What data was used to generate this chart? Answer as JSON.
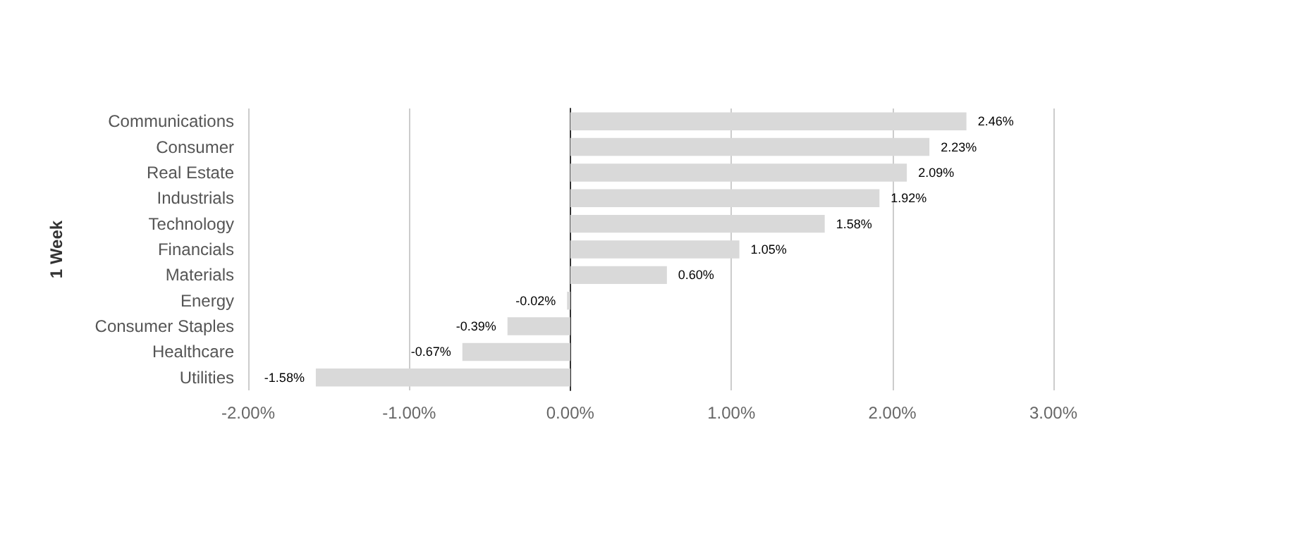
{
  "chart_data": {
    "type": "bar",
    "orientation": "horizontal",
    "ylabel": "1 Week",
    "categories": [
      "Communications",
      "Consumer",
      "Real Estate",
      "Industrials",
      "Technology",
      "Financials",
      "Materials",
      "Energy",
      "Consumer Staples",
      "Healthcare",
      "Utilities"
    ],
    "values": [
      2.46,
      2.23,
      2.09,
      1.92,
      1.58,
      1.05,
      0.6,
      -0.02,
      -0.39,
      -0.67,
      -1.58
    ],
    "value_labels": [
      "2.46%",
      "2.23%",
      "2.09%",
      "1.92%",
      "1.58%",
      "1.05%",
      "0.60%",
      "-0.02%",
      "-0.39%",
      "-0.67%",
      "-1.58%"
    ],
    "color": "#d9d9d9",
    "xlim": [
      -2,
      3
    ],
    "xticks": [
      {
        "value": -2,
        "label": "-2.00%"
      },
      {
        "value": -1,
        "label": "-1.00%"
      },
      {
        "value": 0,
        "label": "0.00%"
      },
      {
        "value": 1,
        "label": "1.00%"
      },
      {
        "value": 2,
        "label": "2.00%"
      },
      {
        "value": 3,
        "label": "3.00%"
      }
    ],
    "grid": "x"
  }
}
